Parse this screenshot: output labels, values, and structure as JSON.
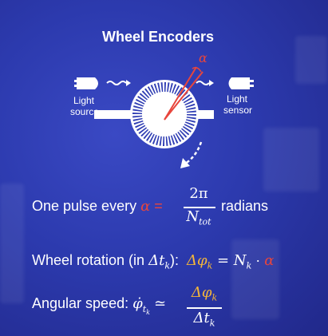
{
  "slide": {
    "title": "Wheel Encoders",
    "diagram": {
      "alpha_symbol": "α",
      "light_source_label_line1": "Light",
      "light_source_label_line2": "source",
      "light_sensor_label_line1": "Light",
      "light_sensor_label_line2": "sensor"
    },
    "eq1": {
      "prefix": "One pulse every ",
      "alpha": "α",
      "equals": " =",
      "numerator": "2π",
      "denominator": "N",
      "denominator_sub": "tot",
      "suffix": "radians"
    },
    "eq2": {
      "prefix": "Wheel rotation (in ",
      "dt": "Δt",
      "dt_sub": "k",
      "close": "):",
      "lhs": "Δφ",
      "lhs_sub": "k",
      "mid": " = N",
      "mid_sub": "k",
      "dot": " · ",
      "alpha": "α"
    },
    "eq3": {
      "prefix": "Angular speed: ",
      "phi": "φ̇",
      "phi_sub": "t",
      "phi_subsub": "k",
      "approx": "≃",
      "numerator": "Δφ",
      "numerator_sub": "k",
      "denominator": "Δt",
      "denominator_sub": "k"
    },
    "colors": {
      "accent_red": "#e8453c",
      "accent_yellow": "#f4b63a",
      "background": "#2c3aae"
    }
  }
}
